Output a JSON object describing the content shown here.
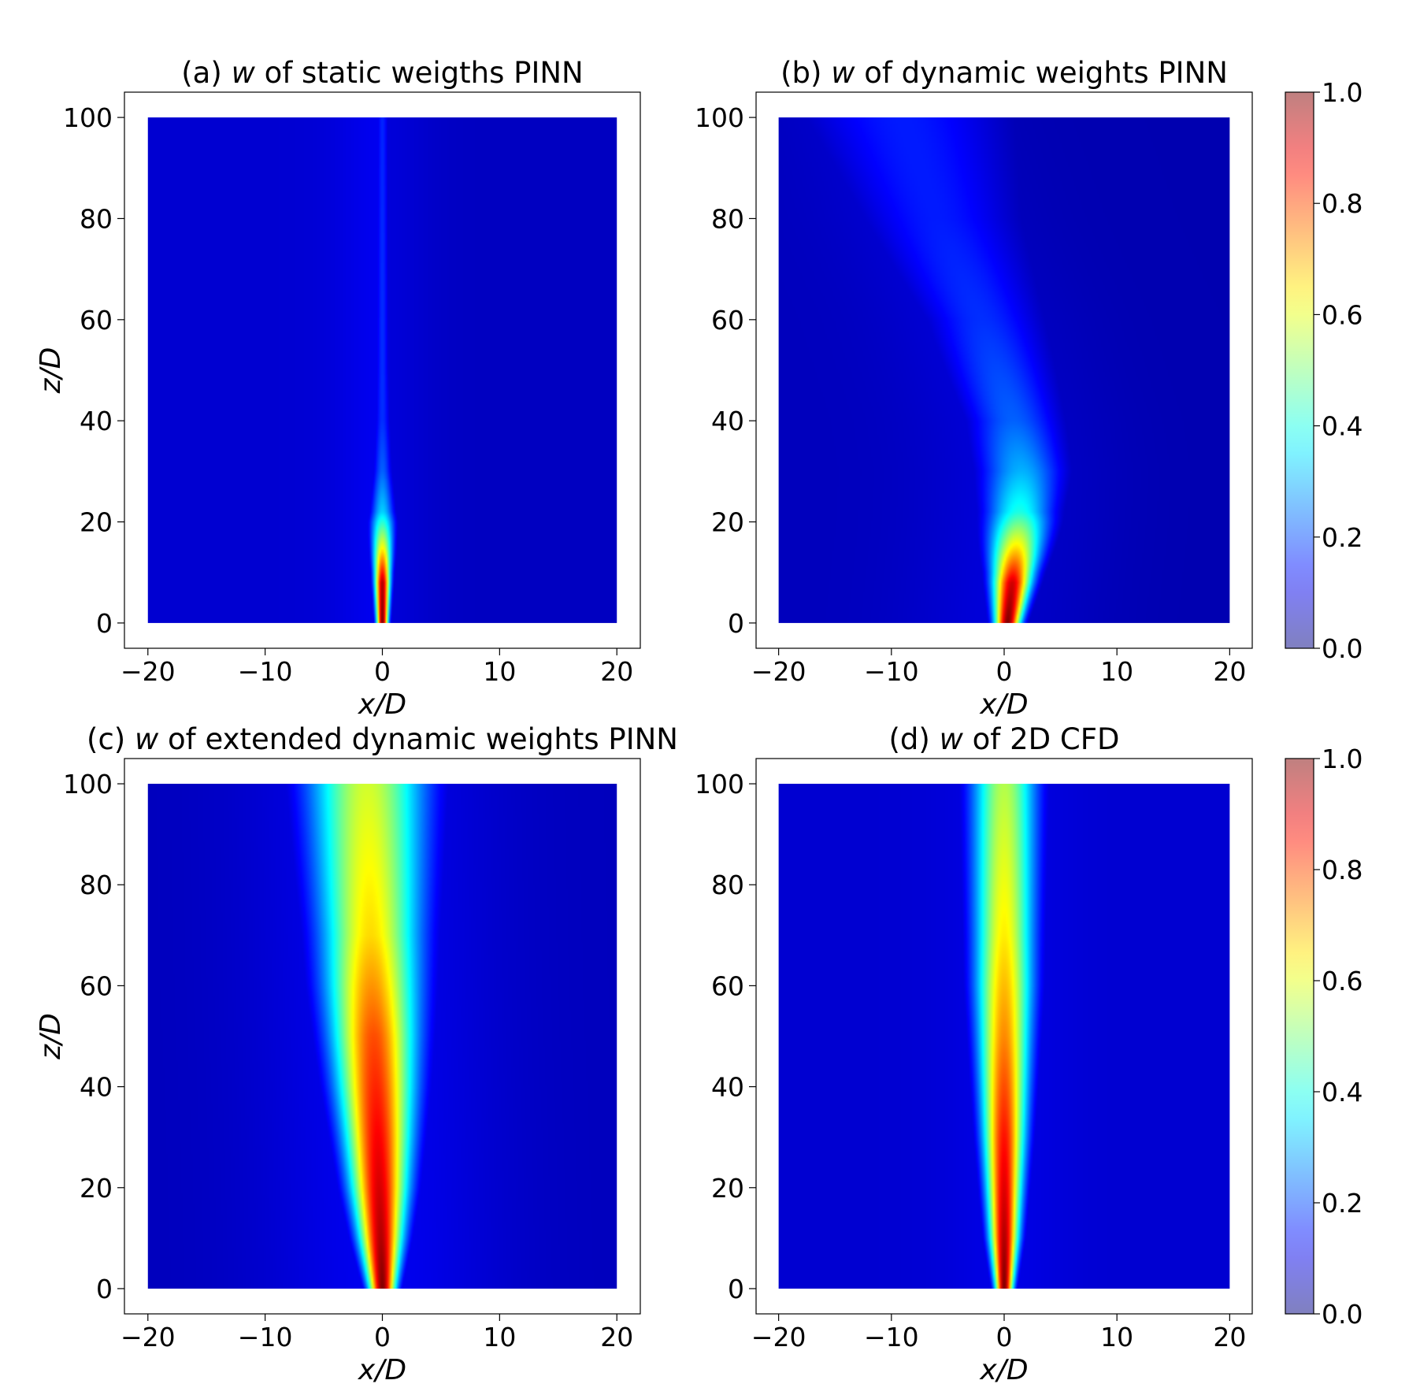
{
  "figure": {
    "colorbar_ticks": [
      "0.0",
      "0.2",
      "0.4",
      "0.6",
      "0.8",
      "1.0"
    ]
  },
  "chart_data": [
    {
      "type": "heatmap",
      "panel": "a",
      "title_prefix": "(a) ",
      "title_var": "w",
      "title_suffix": " of static weigths PINN",
      "xlabel": "x/D",
      "ylabel": "z/D",
      "show_ylabel": true,
      "xlim": [
        -22,
        22
      ],
      "ylim": [
        -5,
        105
      ],
      "x_ticks": [
        -20,
        -10,
        0,
        10,
        20
      ],
      "y_ticks": [
        0,
        20,
        40,
        60,
        80,
        100
      ],
      "x_ticklabels": [
        "−20",
        "−10",
        "0",
        "10",
        "20"
      ],
      "y_ticklabels": [
        "0",
        "20",
        "40",
        "60",
        "80",
        "100"
      ],
      "domain_x": [
        -20,
        20
      ],
      "domain_z": [
        0,
        100
      ],
      "colorbar": false,
      "field": {
        "center_x": [
          [
            0,
            0.0
          ],
          [
            100,
            0.0
          ]
        ],
        "width": [
          [
            0,
            0.35
          ],
          [
            10,
            0.5
          ],
          [
            20,
            0.75
          ],
          [
            30,
            0.6
          ],
          [
            50,
            0.45
          ],
          [
            100,
            0.4
          ]
        ],
        "peak": [
          [
            0,
            1.0
          ],
          [
            8,
            0.95
          ],
          [
            15,
            0.62
          ],
          [
            22,
            0.33
          ],
          [
            30,
            0.22
          ],
          [
            40,
            0.17
          ],
          [
            100,
            0.16
          ]
        ],
        "halo_w": 3,
        "halo_amp": 0.03,
        "background": 0.08,
        "dark_side": "right"
      }
    },
    {
      "type": "heatmap",
      "panel": "b",
      "title_prefix": "(b) ",
      "title_var": "w",
      "title_suffix": " of dynamic weights PINN",
      "xlabel": "x/D",
      "ylabel": "z/D",
      "show_ylabel": false,
      "xlim": [
        -22,
        22
      ],
      "ylim": [
        -5,
        105
      ],
      "x_ticks": [
        -20,
        -10,
        0,
        10,
        20
      ],
      "y_ticks": [
        0,
        20,
        40,
        60,
        80,
        100
      ],
      "x_ticklabels": [
        "−20",
        "−10",
        "0",
        "10",
        "20"
      ],
      "y_ticklabels": [
        "0",
        "20",
        "40",
        "60",
        "80",
        "100"
      ],
      "domain_x": [
        -20,
        20
      ],
      "domain_z": [
        0,
        100
      ],
      "colorbar": true,
      "field": {
        "center_x": [
          [
            0,
            0.3
          ],
          [
            10,
            0.8
          ],
          [
            20,
            1.3
          ],
          [
            30,
            1.5
          ],
          [
            40,
            0.8
          ],
          [
            60,
            -2.0
          ],
          [
            80,
            -6.0
          ],
          [
            100,
            -9.0
          ]
        ],
        "width": [
          [
            0,
            0.8
          ],
          [
            10,
            1.3
          ],
          [
            20,
            2.0
          ],
          [
            30,
            2.6
          ],
          [
            40,
            3.0
          ],
          [
            60,
            4.0
          ],
          [
            80,
            5.5
          ],
          [
            100,
            7.0
          ]
        ],
        "peak": [
          [
            0,
            1.0
          ],
          [
            8,
            0.92
          ],
          [
            15,
            0.65
          ],
          [
            22,
            0.4
          ],
          [
            30,
            0.3
          ],
          [
            40,
            0.22
          ],
          [
            60,
            0.17
          ],
          [
            80,
            0.15
          ],
          [
            100,
            0.15
          ]
        ],
        "halo_w": 6,
        "halo_amp": 0.03,
        "background": 0.06,
        "dark_side": "right"
      }
    },
    {
      "type": "heatmap",
      "panel": "c",
      "title_prefix": "(c) ",
      "title_var": "w",
      "title_suffix": " of extended dynamic weights PINN",
      "xlabel": "x/D",
      "ylabel": "z/D",
      "show_ylabel": true,
      "xlim": [
        -22,
        22
      ],
      "ylim": [
        -5,
        105
      ],
      "x_ticks": [
        -20,
        -10,
        0,
        10,
        20
      ],
      "y_ticks": [
        0,
        20,
        40,
        60,
        80,
        100
      ],
      "x_ticklabels": [
        "−20",
        "−10",
        "0",
        "10",
        "20"
      ],
      "y_ticklabels": [
        "0",
        "20",
        "40",
        "60",
        "80",
        "100"
      ],
      "domain_x": [
        -20,
        20
      ],
      "domain_z": [
        0,
        100
      ],
      "colorbar": false,
      "field": {
        "center_x": [
          [
            0,
            0.0
          ],
          [
            30,
            -0.4
          ],
          [
            60,
            -0.9
          ],
          [
            100,
            -1.3
          ]
        ],
        "width": [
          [
            0,
            0.8
          ],
          [
            10,
            1.3
          ],
          [
            20,
            1.7
          ],
          [
            40,
            2.3
          ],
          [
            60,
            2.8
          ],
          [
            80,
            3.2
          ],
          [
            100,
            3.6
          ]
        ],
        "peak": [
          [
            0,
            1.0
          ],
          [
            10,
            0.95
          ],
          [
            30,
            0.88
          ],
          [
            50,
            0.8
          ],
          [
            70,
            0.66
          ],
          [
            85,
            0.62
          ],
          [
            100,
            0.58
          ]
        ],
        "halo_w": 7,
        "halo_amp": 0.05,
        "background": 0.06,
        "dark_side": "none"
      }
    },
    {
      "type": "heatmap",
      "panel": "d",
      "title_prefix": "(d) ",
      "title_var": "w",
      "title_suffix": " of 2D CFD",
      "xlabel": "x/D",
      "ylabel": "z/D",
      "show_ylabel": false,
      "xlim": [
        -22,
        22
      ],
      "ylim": [
        -5,
        105
      ],
      "x_ticks": [
        -20,
        -10,
        0,
        10,
        20
      ],
      "y_ticks": [
        0,
        20,
        40,
        60,
        80,
        100
      ],
      "x_ticklabels": [
        "−20",
        "−10",
        "0",
        "10",
        "20"
      ],
      "y_ticklabels": [
        "0",
        "20",
        "40",
        "60",
        "80",
        "100"
      ],
      "domain_x": [
        -20,
        20
      ],
      "domain_z": [
        0,
        100
      ],
      "colorbar": true,
      "field": {
        "center_x": [
          [
            0,
            0.0
          ],
          [
            100,
            0.0
          ]
        ],
        "width": [
          [
            0,
            0.55
          ],
          [
            10,
            0.9
          ],
          [
            30,
            1.3
          ],
          [
            60,
            1.8
          ],
          [
            100,
            2.1
          ]
        ],
        "peak": [
          [
            0,
            1.0
          ],
          [
            10,
            0.95
          ],
          [
            30,
            0.86
          ],
          [
            50,
            0.74
          ],
          [
            70,
            0.64
          ],
          [
            100,
            0.55
          ]
        ],
        "halo_w": 4,
        "halo_amp": 0.02,
        "background": 0.08,
        "dark_side": "none"
      }
    }
  ]
}
